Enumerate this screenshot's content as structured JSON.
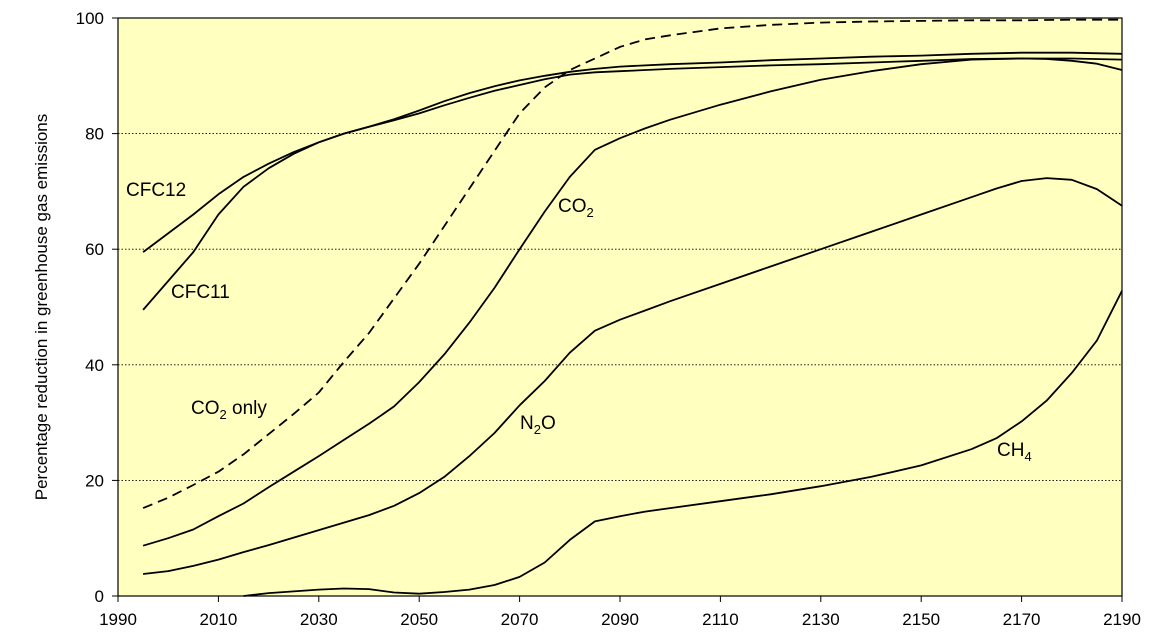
{
  "chart_data": {
    "type": "line",
    "title": "",
    "xlabel": "",
    "ylabel": "Percentage reduction in greenhouse gas emissions",
    "xlim": [
      1990,
      2190
    ],
    "ylim": [
      0,
      100
    ],
    "x_ticks": [
      "1990",
      "2010",
      "2030",
      "2050",
      "2070",
      "2090",
      "2110",
      "2130",
      "2150",
      "2170",
      "2190"
    ],
    "y_ticks": [
      "0",
      "20",
      "40",
      "60",
      "80",
      "100"
    ],
    "grid": "horizontal dotted",
    "background_color": "#ffffc0",
    "series": [
      {
        "id": "cfc12",
        "name": "CFC12",
        "label_text": "CFC12",
        "label_sub": "",
        "label_suffix": "",
        "style": "solid",
        "x": [
          1995,
          2005,
          2010,
          2015,
          2020,
          2025,
          2030,
          2035,
          2040,
          2045,
          2050,
          2055,
          2060,
          2065,
          2070,
          2075,
          2080,
          2085,
          2090,
          2100,
          2110,
          2120,
          2130,
          2140,
          2150,
          2160,
          2170,
          2180,
          2190
        ],
        "y": [
          59.5,
          66,
          69.5,
          72.5,
          74.8,
          76.8,
          78.5,
          80,
          81.2,
          82.3,
          83.5,
          84.9,
          86.2,
          87.4,
          88.4,
          89.4,
          90.2,
          90.6,
          90.8,
          91.2,
          91.5,
          91.8,
          92,
          92.3,
          92.6,
          92.9,
          93,
          93,
          92.8
        ]
      },
      {
        "id": "cfc11",
        "name": "CFC11",
        "label_text": "CFC11",
        "label_sub": "",
        "label_suffix": "",
        "style": "solid",
        "x": [
          1995,
          2000,
          2005,
          2010,
          2015,
          2020,
          2025,
          2030,
          2035,
          2040,
          2045,
          2050,
          2055,
          2060,
          2065,
          2070,
          2075,
          2080,
          2085,
          2090,
          2100,
          2110,
          2120,
          2130,
          2140,
          2150,
          2160,
          2170,
          2180,
          2190
        ],
        "y": [
          49.5,
          54.5,
          59.5,
          66,
          70.8,
          74,
          76.5,
          78.5,
          80,
          81.2,
          82.5,
          84,
          85.6,
          87,
          88.2,
          89.2,
          90,
          90.7,
          91.2,
          91.6,
          92,
          92.3,
          92.7,
          93,
          93.3,
          93.5,
          93.8,
          94,
          94,
          93.8
        ]
      },
      {
        "id": "co2only",
        "name": "CO2 only",
        "label_text": "CO",
        "label_sub": "2",
        "label_suffix": " only",
        "style": "dashed",
        "x": [
          1995,
          2000,
          2005,
          2010,
          2015,
          2020,
          2025,
          2030,
          2035,
          2040,
          2045,
          2050,
          2055,
          2060,
          2065,
          2070,
          2075,
          2080,
          2085,
          2090,
          2095,
          2100,
          2110,
          2120,
          2130,
          2140,
          2150,
          2160,
          2170,
          2180,
          2190
        ],
        "y": [
          15.2,
          17,
          19.2,
          21.5,
          24.5,
          28,
          31.5,
          35.2,
          40.5,
          45.5,
          51.5,
          57.5,
          64,
          70.5,
          77,
          83.5,
          88,
          91,
          93,
          95,
          96.3,
          97,
          98.2,
          98.8,
          99.2,
          99.4,
          99.5,
          99.6,
          99.6,
          99.7,
          99.7
        ]
      },
      {
        "id": "co2",
        "name": "CO2",
        "label_text": "CO",
        "label_sub": "2",
        "label_suffix": "",
        "style": "solid",
        "x": [
          1995,
          2000,
          2005,
          2010,
          2015,
          2020,
          2025,
          2030,
          2035,
          2040,
          2045,
          2050,
          2055,
          2060,
          2065,
          2070,
          2075,
          2080,
          2085,
          2090,
          2095,
          2100,
          2110,
          2120,
          2130,
          2140,
          2150,
          2160,
          2170,
          2175,
          2180,
          2185,
          2190
        ],
        "y": [
          8.7,
          10,
          11.5,
          13.8,
          16,
          18.8,
          21.5,
          24.2,
          27,
          29.8,
          32.8,
          37,
          41.8,
          47.3,
          53.3,
          60,
          66.5,
          72.5,
          77.2,
          79.2,
          80.9,
          82.4,
          85,
          87.3,
          89.3,
          90.8,
          92,
          92.8,
          93,
          92.9,
          92.6,
          92.1,
          91
        ]
      },
      {
        "id": "n2o",
        "name": "N2O",
        "label_text": "N",
        "label_sub": "2",
        "label_suffix": "O",
        "style": "solid",
        "x": [
          1995,
          2000,
          2005,
          2010,
          2015,
          2020,
          2025,
          2030,
          2035,
          2040,
          2045,
          2050,
          2055,
          2060,
          2065,
          2070,
          2075,
          2080,
          2085,
          2090,
          2095,
          2100,
          2110,
          2120,
          2130,
          2140,
          2150,
          2160,
          2165,
          2170,
          2175,
          2180,
          2185,
          2190
        ],
        "y": [
          3.8,
          4.3,
          5.2,
          6.3,
          7.6,
          8.8,
          10.1,
          11.4,
          12.7,
          14,
          15.6,
          17.8,
          20.6,
          24.2,
          28.2,
          33,
          37.2,
          42.1,
          45.9,
          47.8,
          49.4,
          51,
          54,
          57,
          60,
          63,
          66,
          69,
          70.5,
          71.8,
          72.3,
          72,
          70.4,
          67.5
        ]
      },
      {
        "id": "ch4",
        "name": "CH4",
        "label_text": "CH",
        "label_sub": "4",
        "label_suffix": "",
        "style": "solid",
        "x": [
          2015,
          2020,
          2025,
          2030,
          2035,
          2040,
          2045,
          2050,
          2055,
          2060,
          2065,
          2070,
          2075,
          2080,
          2085,
          2090,
          2095,
          2100,
          2110,
          2120,
          2130,
          2140,
          2150,
          2160,
          2165,
          2170,
          2175,
          2180,
          2185,
          2190
        ],
        "y": [
          0,
          0.5,
          0.8,
          1.1,
          1.3,
          1.2,
          0.6,
          0.4,
          0.7,
          1.1,
          1.9,
          3.3,
          5.8,
          9.7,
          12.9,
          13.8,
          14.6,
          15.2,
          16.4,
          17.6,
          19,
          20.6,
          22.6,
          25.4,
          27.3,
          30.2,
          33.8,
          38.6,
          44.2,
          52.8
        ]
      }
    ]
  }
}
